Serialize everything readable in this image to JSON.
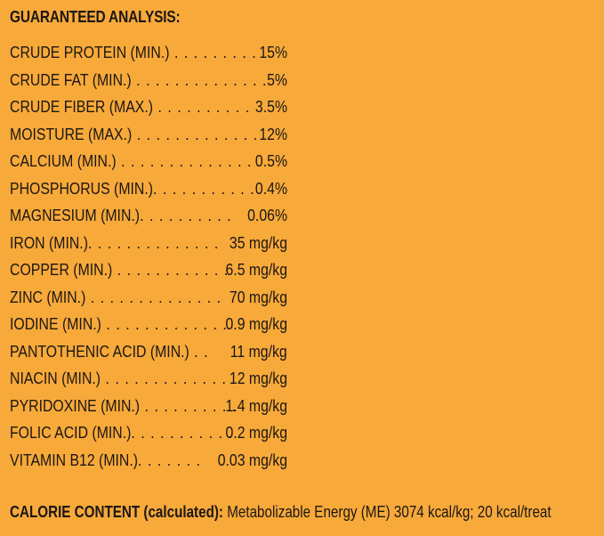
{
  "heading": "GUARANTEED ANALYSIS:",
  "rows": [
    {
      "nutrient": "CRUDE PROTEIN (MIN.)",
      "dots": " . . . . . . . . .",
      "value": "15%"
    },
    {
      "nutrient": "CRUDE FAT (MIN.)",
      "dots": " . . . . . . . . . . . . . .",
      "value": "5%"
    },
    {
      "nutrient": "CRUDE FIBER (MAX.)",
      "dots": " . . . . . . . . . .",
      "value": "3.5%"
    },
    {
      "nutrient": "MOISTURE (MAX.)",
      "dots": " . . . . . . . . . . . . .",
      "value": "12%"
    },
    {
      "nutrient": "CALCIUM (MIN.)",
      "dots": " . . . . . . . . . . . . . .",
      "value": "0.5%"
    },
    {
      "nutrient": "PHOSPHORUS (MIN.)",
      "dots": ". . . . . . . . . . .",
      "value": "0.4%"
    },
    {
      "nutrient": "MAGNESIUM (MIN.)",
      "dots": ". . . . . . . . . .",
      "value": "0.06%"
    },
    {
      "nutrient": "IRON (MIN.)",
      "dots": ". . . . . . . . . . . . . .",
      "value": "35 mg/kg"
    },
    {
      "nutrient": "COPPER (MIN.)",
      "dots": " . . . . . . . . . . . .",
      "value": "6.5 mg/kg"
    },
    {
      "nutrient": "ZINC (MIN.)",
      "dots": " . . . . . . . . . . . . . .",
      "value": "70 mg/kg"
    },
    {
      "nutrient": "IODINE (MIN.)",
      "dots": " . . . . . . . . . . . . .",
      "value": "0.9 mg/kg"
    },
    {
      "nutrient": "PANTOTHENIC ACID (MIN.)",
      "dots": " . .",
      "value": "11 mg/kg"
    },
    {
      "nutrient": "NIACIN (MIN.)",
      "dots": " . . . . . . . . . . . . .",
      "value": "12 mg/kg"
    },
    {
      "nutrient": "PYRIDOXINE (MIN.)",
      "dots": " . . . . . . . . . .",
      "value": "1.4 mg/kg"
    },
    {
      "nutrient": "FOLIC ACID (MIN.)",
      "dots": ". . . . . . . . . . .",
      "value": "0.2 mg/kg"
    },
    {
      "nutrient": "VITAMIN B12 (MIN.)",
      "dots": ". . . . . . .",
      "value": "0.03 mg/kg"
    }
  ],
  "calorie": {
    "label": "CALORIE CONTENT (calculated):",
    "text": " Metabolizable Energy (ME) 3074 kcal/kg; 20 kcal/treat"
  },
  "colors": {
    "background": "#f7a93a",
    "text": "#1c1714"
  }
}
